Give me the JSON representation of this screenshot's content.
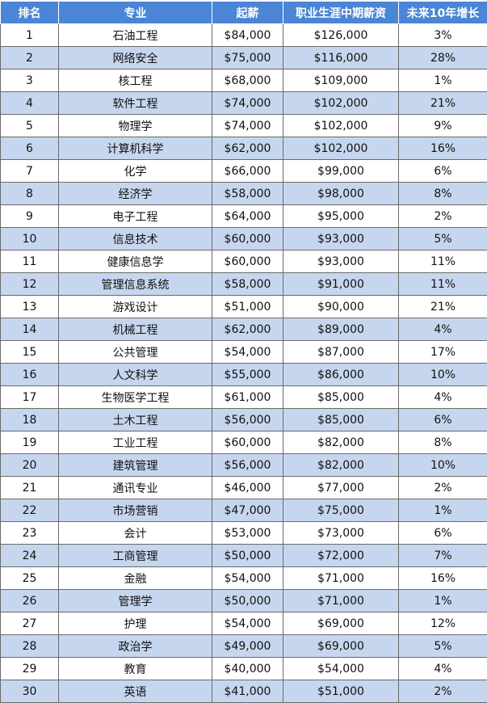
{
  "header": {
    "rank": "排名",
    "major": "专业",
    "starting_salary": "起薪",
    "mid_career_salary": "职业生涯中期薪资",
    "growth_10yr": "未来10年增长"
  },
  "rows": [
    {
      "rank": "1",
      "major": "石油工程",
      "start": "$84,000",
      "mid": "$126,000",
      "growth": "3%"
    },
    {
      "rank": "2",
      "major": "网络安全",
      "start": "$75,000",
      "mid": "$116,000",
      "growth": "28%"
    },
    {
      "rank": "3",
      "major": "核工程",
      "start": "$68,000",
      "mid": "$109,000",
      "growth": "1%"
    },
    {
      "rank": "4",
      "major": "软件工程",
      "start": "$74,000",
      "mid": "$102,000",
      "growth": "21%"
    },
    {
      "rank": "5",
      "major": "物理学",
      "start": "$74,000",
      "mid": "$102,000",
      "growth": "9%"
    },
    {
      "rank": "6",
      "major": "计算机科学",
      "start": "$62,000",
      "mid": "$102,000",
      "growth": "16%"
    },
    {
      "rank": "7",
      "major": "化学",
      "start": "$66,000",
      "mid": "$99,000",
      "growth": "6%"
    },
    {
      "rank": "8",
      "major": "经济学",
      "start": "$58,000",
      "mid": "$98,000",
      "growth": "8%"
    },
    {
      "rank": "9",
      "major": "电子工程",
      "start": "$64,000",
      "mid": "$95,000",
      "growth": "2%"
    },
    {
      "rank": "10",
      "major": "信息技术",
      "start": "$60,000",
      "mid": "$93,000",
      "growth": "5%"
    },
    {
      "rank": "11",
      "major": "健康信息学",
      "start": "$60,000",
      "mid": "$93,000",
      "growth": "11%"
    },
    {
      "rank": "12",
      "major": "管理信息系统",
      "start": "$58,000",
      "mid": "$91,000",
      "growth": "11%"
    },
    {
      "rank": "13",
      "major": "游戏设计",
      "start": "$51,000",
      "mid": "$90,000",
      "growth": "21%"
    },
    {
      "rank": "14",
      "major": "机械工程",
      "start": "$62,000",
      "mid": "$89,000",
      "growth": "4%"
    },
    {
      "rank": "15",
      "major": "公共管理",
      "start": "$54,000",
      "mid": "$87,000",
      "growth": "17%"
    },
    {
      "rank": "16",
      "major": "人文科学",
      "start": "$55,000",
      "mid": "$86,000",
      "growth": "10%"
    },
    {
      "rank": "17",
      "major": "生物医学工程",
      "start": "$61,000",
      "mid": "$85,000",
      "growth": "4%"
    },
    {
      "rank": "18",
      "major": "土木工程",
      "start": "$56,000",
      "mid": "$85,000",
      "growth": "6%"
    },
    {
      "rank": "19",
      "major": "工业工程",
      "start": "$60,000",
      "mid": "$82,000",
      "growth": "8%"
    },
    {
      "rank": "20",
      "major": "建筑管理",
      "start": "$56,000",
      "mid": "$82,000",
      "growth": "10%"
    },
    {
      "rank": "21",
      "major": "通讯专业",
      "start": "$46,000",
      "mid": "$77,000",
      "growth": "2%"
    },
    {
      "rank": "22",
      "major": "市场营销",
      "start": "$47,000",
      "mid": "$75,000",
      "growth": "1%"
    },
    {
      "rank": "23",
      "major": "会计",
      "start": "$53,000",
      "mid": "$73,000",
      "growth": "6%"
    },
    {
      "rank": "24",
      "major": "工商管理",
      "start": "$50,000",
      "mid": "$72,000",
      "growth": "7%"
    },
    {
      "rank": "25",
      "major": "金融",
      "start": "$54,000",
      "mid": "$71,000",
      "growth": "16%"
    },
    {
      "rank": "26",
      "major": "管理学",
      "start": "$50,000",
      "mid": "$71,000",
      "growth": "1%"
    },
    {
      "rank": "27",
      "major": "护理",
      "start": "$54,000",
      "mid": "$69,000",
      "growth": "12%"
    },
    {
      "rank": "28",
      "major": "政治学",
      "start": "$49,000",
      "mid": "$69,000",
      "growth": "5%"
    },
    {
      "rank": "29",
      "major": "教育",
      "start": "$40,000",
      "mid": "$54,000",
      "growth": "4%"
    },
    {
      "rank": "30",
      "major": "英语",
      "start": "$41,000",
      "mid": "$51,000",
      "growth": "2%"
    }
  ],
  "colors": {
    "header_bg": "#4a85d6",
    "header_text": "#ffffff",
    "even_row_bg": "#c6d6ee",
    "odd_row_bg": "#ffffff",
    "border": "#6a6a6a"
  }
}
